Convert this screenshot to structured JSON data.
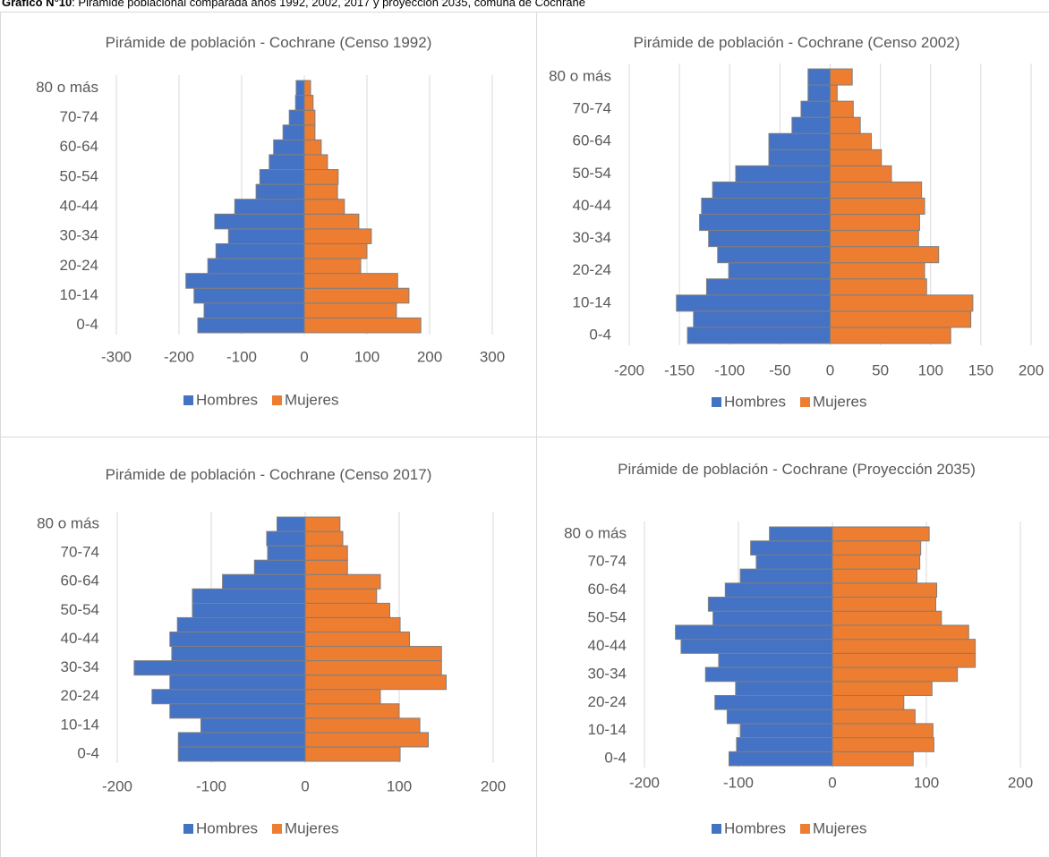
{
  "caption": {
    "label": "Gráfico N°10",
    "text": ": Pirámide poblacional comparada años 1992, 2002, 2017 y proyección 2035, comuna de Cochrane"
  },
  "chart_data": [
    {
      "type": "bar",
      "orientation": "horizontal",
      "title": "Pirámide de población - Cochrane (Censo 1992)",
      "categories": [
        "0-4",
        null,
        "10-14",
        null,
        "20-24",
        null,
        "30-34",
        null,
        "40-44",
        null,
        "50-54",
        null,
        "60-64",
        null,
        "70-74",
        null,
        "80 o más"
      ],
      "series": [
        {
          "name": "Hombres",
          "color": "#4472c4",
          "values": [
            -170,
            -160,
            -176,
            -189,
            -154,
            -141,
            -121,
            -143,
            -111,
            -77,
            -71,
            -56,
            -49,
            -34,
            -24,
            -14,
            -13
          ]
        },
        {
          "name": "Mujeres",
          "color": "#ed7d31",
          "values": [
            186,
            147,
            167,
            149,
            90,
            100,
            107,
            87,
            64,
            53,
            54,
            37,
            27,
            17,
            17,
            14,
            10
          ]
        }
      ],
      "xlim": [
        -300,
        300
      ],
      "xticks": [
        -300,
        -200,
        -100,
        0,
        100,
        200,
        300
      ],
      "grid": true,
      "legend": "bottom"
    },
    {
      "type": "bar",
      "orientation": "horizontal",
      "title": "Pirámide de población - Cochrane (Censo 2002)",
      "categories": [
        "0-4",
        null,
        "10-14",
        null,
        "20-24",
        null,
        "30-34",
        null,
        "40-44",
        null,
        "50-54",
        null,
        "60-64",
        null,
        "70-74",
        null,
        "80 o más"
      ],
      "series": [
        {
          "name": "Hombres",
          "color": "#4472c4",
          "values": [
            -142,
            -136,
            -153,
            -123,
            -101,
            -112,
            -121,
            -130,
            -128,
            -117,
            -94,
            -61,
            -61,
            -38,
            -29,
            -22,
            -22
          ]
        },
        {
          "name": "Mujeres",
          "color": "#ed7d31",
          "values": [
            120,
            140,
            142,
            96,
            94,
            108,
            88,
            89,
            94,
            91,
            61,
            51,
            41,
            30,
            23,
            7,
            22
          ]
        }
      ],
      "xlim": [
        -200,
        200
      ],
      "xticks": [
        -200,
        -150,
        -100,
        -50,
        0,
        50,
        100,
        150,
        200
      ],
      "grid": true,
      "legend": "bottom"
    },
    {
      "type": "bar",
      "orientation": "horizontal",
      "title": "Pirámide de población - Cochrane (Censo 2017)",
      "categories": [
        "0-4",
        null,
        "10-14",
        null,
        "20-24",
        null,
        "30-34",
        null,
        "40-44",
        null,
        "50-54",
        null,
        "60-64",
        null,
        "70-74",
        null,
        "80 o más"
      ],
      "series": [
        {
          "name": "Hombres",
          "color": "#4472c4",
          "values": [
            -135,
            -135,
            -111,
            -144,
            -163,
            -144,
            -182,
            -142,
            -144,
            -136,
            -120,
            -120,
            -88,
            -54,
            -40,
            -41,
            -30
          ]
        },
        {
          "name": "Mujeres",
          "color": "#ed7d31",
          "values": [
            101,
            131,
            122,
            100,
            80,
            150,
            145,
            145,
            111,
            101,
            90,
            76,
            80,
            45,
            45,
            40,
            37
          ]
        }
      ],
      "xlim": [
        -200,
        200
      ],
      "xticks": [
        -200,
        -100,
        0,
        100,
        200
      ],
      "grid": true,
      "legend": "bottom"
    },
    {
      "type": "bar",
      "orientation": "horizontal",
      "title": "Pirámide de población - Cochrane (Proyección 2035)",
      "categories": [
        "0-4",
        null,
        "10-14",
        null,
        "20-24",
        null,
        "30-34",
        null,
        "40-44",
        null,
        "50-54",
        null,
        "60-64",
        null,
        "70-74",
        null,
        "80 o más"
      ],
      "series": [
        {
          "name": "Hombres",
          "color": "#4472c4",
          "values": [
            -110,
            -102,
            -98,
            -112,
            -125,
            -103,
            -135,
            -121,
            -161,
            -167,
            -127,
            -132,
            -114,
            -98,
            -81,
            -87,
            -67
          ]
        },
        {
          "name": "Mujeres",
          "color": "#ed7d31",
          "values": [
            86,
            108,
            107,
            88,
            76,
            106,
            133,
            152,
            152,
            145,
            116,
            110,
            111,
            90,
            93,
            94,
            103
          ]
        }
      ],
      "xlim": [
        -200,
        200
      ],
      "xticks": [
        -200,
        -100,
        0,
        100,
        200
      ],
      "grid": true,
      "legend": "bottom"
    }
  ]
}
